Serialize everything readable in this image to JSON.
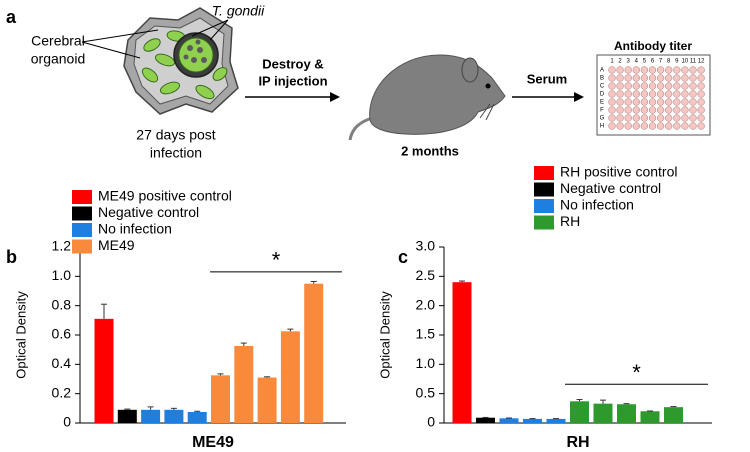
{
  "panel_labels": [
    "a",
    "b",
    "c"
  ],
  "diagram": {
    "organoid_label": [
      "Cerebral",
      "organoid"
    ],
    "parasite_label": "T. gondii",
    "timepoint": [
      "27 days post",
      "infection"
    ],
    "step1": [
      "Destroy &",
      "IP injection"
    ],
    "duration": "2 months",
    "step2": "Serum",
    "readout": "Antibody titer",
    "plate_rows": [
      "A",
      "B",
      "C",
      "D",
      "E",
      "F",
      "G",
      "H"
    ],
    "plate_columns": [
      "1",
      "2",
      "3",
      "4",
      "5",
      "6",
      "7",
      "8",
      "9",
      "10",
      "11",
      "12"
    ]
  },
  "chart_data": [
    {
      "type": "bar",
      "x_label": "ME49",
      "y_label": "Optical Density",
      "annotation": "*",
      "categories": [
        null,
        null,
        null,
        null,
        null,
        null,
        null,
        null,
        null,
        null
      ],
      "series": [
        {
          "name": "ME49 positive control",
          "color": "#ff0000",
          "values": [
            0.71,
            null,
            null,
            null,
            null,
            null,
            null,
            null,
            null,
            null
          ],
          "errors": [
            0.1,
            null,
            null,
            null,
            null,
            null,
            null,
            null,
            null,
            null
          ]
        },
        {
          "name": "Negative control",
          "color": "#000000",
          "values": [
            null,
            0.09,
            null,
            null,
            null,
            null,
            null,
            null,
            null,
            null
          ],
          "errors": [
            null,
            0.005,
            null,
            null,
            null,
            null,
            null,
            null,
            null,
            null
          ]
        },
        {
          "name": "No infection",
          "color": "#1f7fe0",
          "values": [
            null,
            null,
            0.09,
            0.09,
            0.075,
            null,
            null,
            null,
            null,
            null
          ],
          "errors": [
            null,
            null,
            0.02,
            0.01,
            0.005,
            null,
            null,
            null,
            null,
            null
          ]
        },
        {
          "name": "ME49",
          "color": "#f98a3c",
          "values": [
            null,
            null,
            null,
            null,
            null,
            0.325,
            0.525,
            0.31,
            0.625,
            0.95
          ],
          "errors": [
            null,
            null,
            null,
            null,
            null,
            0.01,
            0.02,
            0.005,
            0.015,
            0.015
          ]
        }
      ],
      "ylim": [
        0,
        1.2
      ],
      "yticks": [
        0,
        0.2,
        0.4,
        0.6,
        0.8,
        {
          "value": 1,
          "label": "1.0"
        },
        1.2
      ]
    },
    {
      "type": "bar",
      "x_label": "RH",
      "y_label": "Optical Density",
      "annotation": "*",
      "categories": [
        null,
        null,
        null,
        null,
        null,
        null,
        null,
        null,
        null,
        null
      ],
      "series": [
        {
          "name": "RH positive control",
          "color": "#ff0000",
          "values": [
            2.4,
            null,
            null,
            null,
            null,
            null,
            null,
            null,
            null,
            null
          ],
          "errors": [
            0.02,
            null,
            null,
            null,
            null,
            null,
            null,
            null,
            null,
            null
          ]
        },
        {
          "name": "Negative control",
          "color": "#000000",
          "values": [
            null,
            0.09,
            null,
            null,
            null,
            null,
            null,
            null,
            null,
            null
          ],
          "errors": [
            null,
            0.005,
            null,
            null,
            null,
            null,
            null,
            null,
            null,
            null
          ]
        },
        {
          "name": "No infection",
          "color": "#1f7fe0",
          "values": [
            null,
            null,
            0.08,
            0.07,
            0.07,
            null,
            null,
            null,
            null,
            null
          ],
          "errors": [
            null,
            null,
            0.005,
            0.005,
            0.005,
            null,
            null,
            null,
            null,
            null
          ]
        },
        {
          "name": "RH",
          "color": "#2e9a2e",
          "values": [
            null,
            null,
            null,
            null,
            null,
            0.37,
            0.33,
            0.32,
            0.2,
            0.27
          ],
          "errors": [
            null,
            null,
            null,
            null,
            null,
            0.03,
            0.06,
            0.01,
            0.005,
            0.01
          ]
        }
      ],
      "ylim": [
        0,
        3
      ],
      "yticks": [
        0,
        0.5,
        {
          "value": 1,
          "label": "1.0"
        },
        1.5,
        {
          "value": 2,
          "label": "2.0"
        },
        2.5,
        {
          "value": 3,
          "label": "3.0"
        }
      ]
    }
  ]
}
